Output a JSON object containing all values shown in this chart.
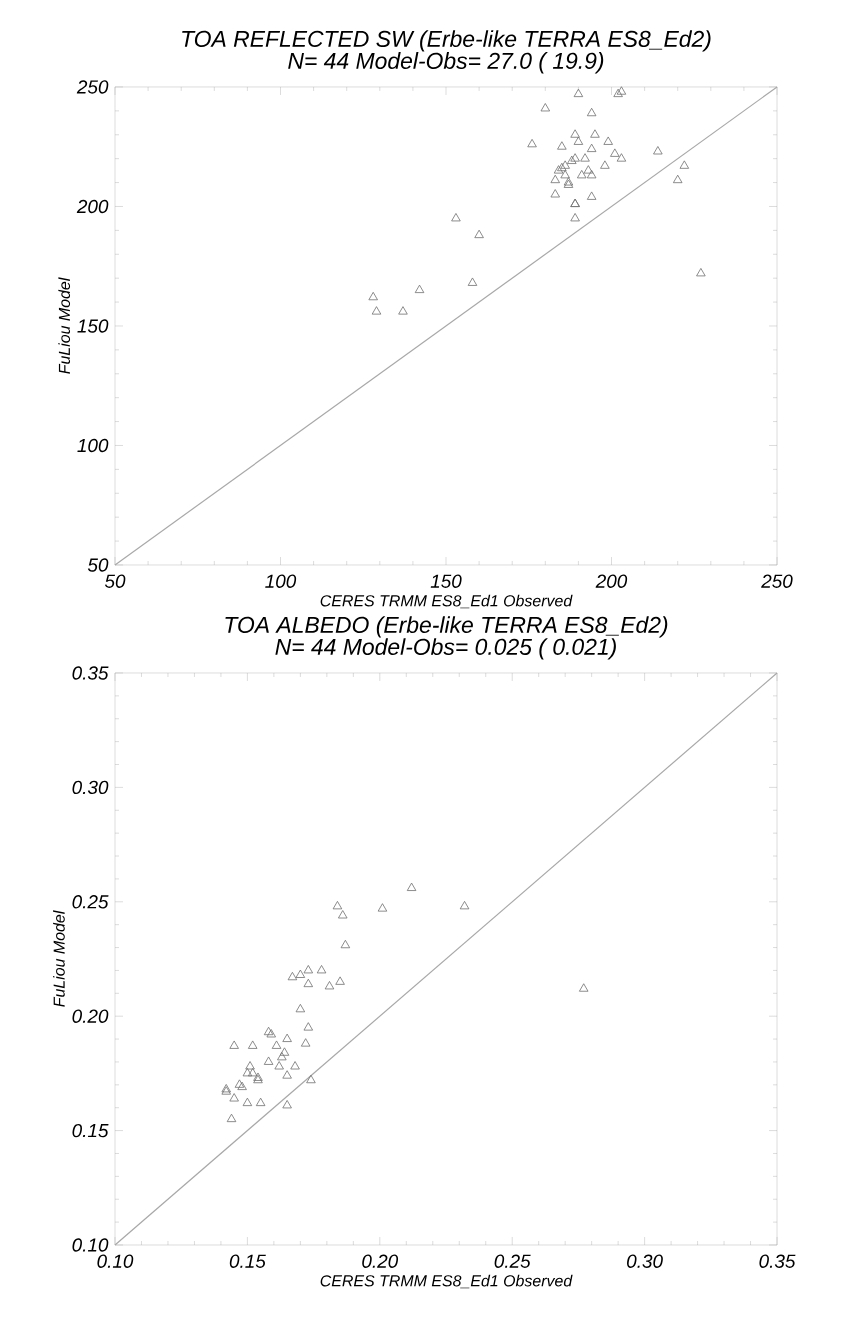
{
  "chart_data": [
    {
      "type": "scatter",
      "title": "TOA REFLECTED SW (Erbe-like TERRA ES8_Ed2)",
      "subtitle": "N=  44  Model-Obs=    27.0  (  19.9)",
      "xlabel": "CERES TRMM ES8_Ed1 Observed",
      "ylabel": "FuLiou Model",
      "xlim": [
        50,
        250
      ],
      "ylim": [
        50,
        250
      ],
      "xticks": [
        50,
        100,
        150,
        200,
        250
      ],
      "yticks": [
        50,
        100,
        150,
        200,
        250
      ],
      "series": [
        {
          "marker": "triangle",
          "color": "#707070",
          "x": [
            190,
            202,
            203,
            180,
            194,
            176,
            189,
            190,
            195,
            185,
            199,
            194,
            201,
            203,
            214,
            189,
            192,
            186,
            198,
            184,
            193,
            194,
            183,
            187,
            222,
            220,
            183,
            194,
            189,
            189,
            153,
            160,
            227,
            158,
            128,
            142,
            129,
            137,
            185,
            187,
            189,
            186,
            191,
            188
          ],
          "values": [
            247,
            247,
            248,
            241,
            239,
            226,
            230,
            227,
            230,
            225,
            227,
            224,
            222,
            220,
            223,
            220,
            220,
            217,
            217,
            215,
            215,
            213,
            211,
            209,
            217,
            211,
            205,
            204,
            201,
            195,
            195,
            188,
            172,
            168,
            162,
            165,
            156,
            156,
            216,
            210,
            201,
            213,
            213,
            219
          ]
        },
        {
          "type": "line",
          "marker": "none",
          "color": "#a8a8a8",
          "x": [
            50,
            250
          ],
          "values": [
            50,
            250
          ]
        }
      ]
    },
    {
      "type": "scatter",
      "title": "TOA ALBEDO (Erbe-like TERRA ES8_Ed2)",
      "subtitle": "N=  44  Model-Obs=    0.025  ( 0.021)",
      "xlabel": "CERES TRMM ES8_Ed1 Observed",
      "ylabel": "FuLiou Model",
      "xlim": [
        0.1,
        0.35
      ],
      "ylim": [
        0.1,
        0.35
      ],
      "xticks": [
        {
          "value": 0.1,
          "label": "0.10"
        },
        0.15,
        {
          "value": 0.2,
          "label": "0.20"
        },
        0.25,
        {
          "value": 0.3,
          "label": "0.30"
        },
        0.35
      ],
      "yticks": [
        {
          "value": 0.1,
          "label": "0.10"
        },
        0.15,
        {
          "value": 0.2,
          "label": "0.20"
        },
        0.25,
        {
          "value": 0.3,
          "label": "0.30"
        },
        0.35
      ],
      "series": [
        {
          "marker": "triangle",
          "color": "#707070",
          "x": [
            0.184,
            0.186,
            0.201,
            0.212,
            0.232,
            0.277,
            0.187,
            0.167,
            0.17,
            0.173,
            0.178,
            0.173,
            0.181,
            0.185,
            0.17,
            0.173,
            0.172,
            0.158,
            0.165,
            0.145,
            0.152,
            0.161,
            0.158,
            0.163,
            0.168,
            0.165,
            0.174,
            0.151,
            0.15,
            0.154,
            0.147,
            0.142,
            0.145,
            0.15,
            0.155,
            0.165,
            0.144,
            0.142,
            0.152,
            0.154,
            0.162,
            0.164,
            0.159,
            0.148
          ],
          "values": [
            0.248,
            0.244,
            0.247,
            0.256,
            0.248,
            0.212,
            0.231,
            0.217,
            0.218,
            0.22,
            0.22,
            0.214,
            0.213,
            0.215,
            0.203,
            0.195,
            0.188,
            0.193,
            0.19,
            0.187,
            0.187,
            0.187,
            0.18,
            0.182,
            0.178,
            0.174,
            0.172,
            0.178,
            0.175,
            0.173,
            0.17,
            0.167,
            0.164,
            0.162,
            0.162,
            0.161,
            0.155,
            0.168,
            0.175,
            0.172,
            0.178,
            0.184,
            0.192,
            0.169
          ]
        },
        {
          "type": "line",
          "marker": "none",
          "color": "#a8a8a8",
          "x": [
            0.1,
            0.35
          ],
          "values": [
            0.1,
            0.35
          ]
        }
      ]
    }
  ]
}
